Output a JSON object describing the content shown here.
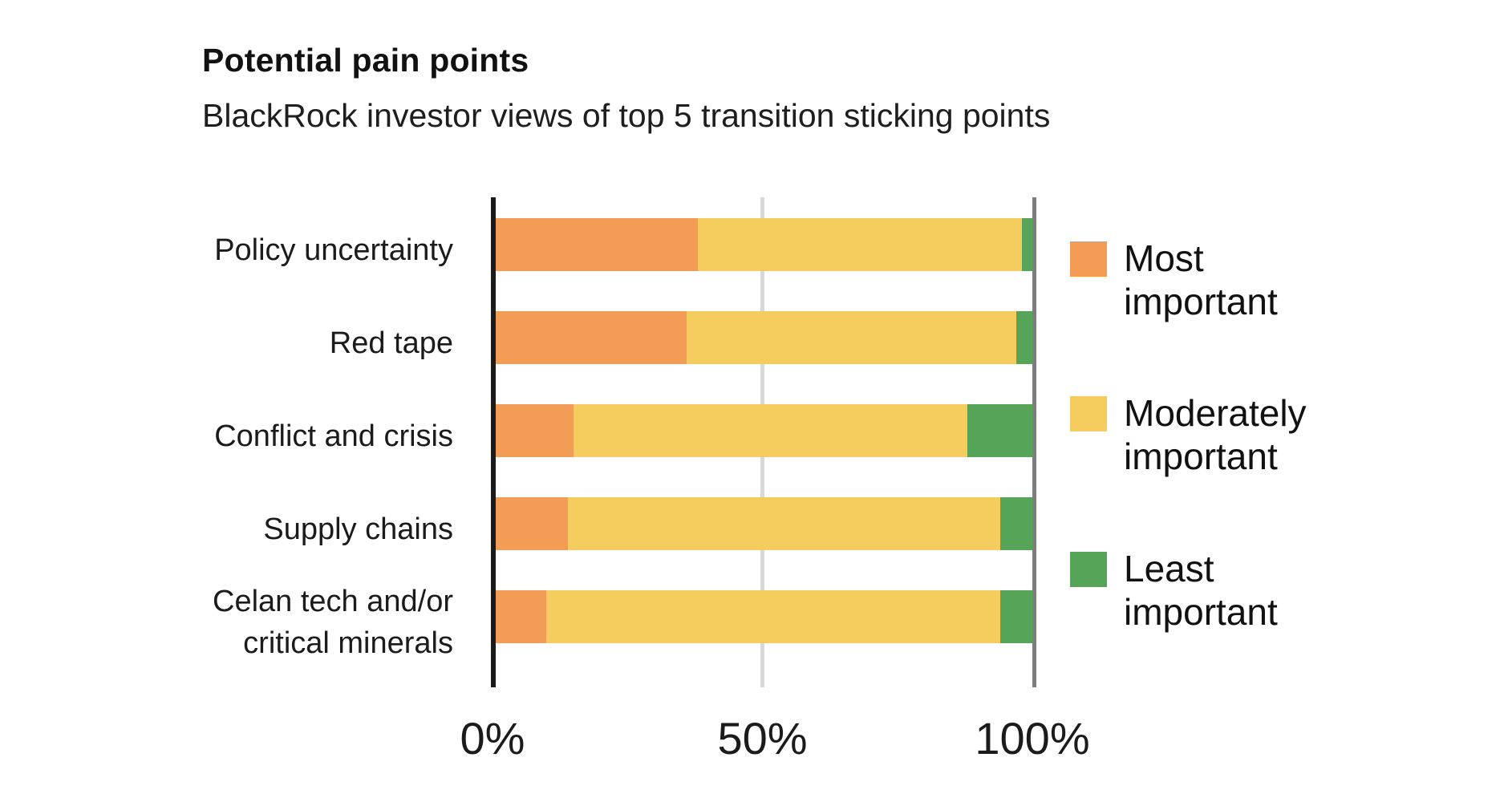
{
  "header": {
    "title": "Potential pain points",
    "subtitle": "BlackRock investor views of top 5 transition sticking points"
  },
  "chart_data": {
    "type": "bar",
    "orientation": "horizontal",
    "stacked": true,
    "unit": "percent",
    "title": "Potential pain points",
    "subtitle": "BlackRock investor views of top 5 transition sticking points",
    "categories": [
      "Policy uncertainty",
      "Red tape",
      "Conflict and crisis",
      "Supply chains",
      "Celan tech and/or critical minerals"
    ],
    "category_display_lines": [
      [
        "Policy uncertainty"
      ],
      [
        "Red tape"
      ],
      [
        "Conflict and crisis"
      ],
      [
        "Supply chains"
      ],
      [
        "Celan tech and/or",
        "critical minerals"
      ]
    ],
    "series": [
      {
        "name": "Most important",
        "color": "#F29C55",
        "values": [
          38,
          36,
          15,
          14,
          10
        ]
      },
      {
        "name": "Moderately important",
        "color": "#F5CD5F",
        "values": [
          60,
          61,
          73,
          80,
          84
        ]
      },
      {
        "name": "Least important",
        "color": "#55A458",
        "values": [
          2,
          3,
          12,
          6,
          6
        ]
      }
    ],
    "xlabel": "",
    "ylabel": "",
    "xlim": [
      0,
      100
    ],
    "x_ticks": [
      {
        "label": "0%",
        "value": 0
      },
      {
        "label": "50%",
        "value": 50
      },
      {
        "label": "100%",
        "value": 100
      }
    ],
    "grid": "vertical-lines-at-ticks",
    "legend_position": "right"
  },
  "legend": {
    "items": [
      {
        "lines": [
          "Most",
          "important"
        ]
      },
      {
        "lines": [
          "Moderately",
          "important"
        ]
      },
      {
        "lines": [
          "Least",
          "important"
        ]
      }
    ]
  },
  "colors": {
    "axis_line": "#1b1b1b",
    "gridline_50": "#d9d9d9",
    "gridline_100": "#7d7d7d",
    "text": "#1b1b1b",
    "background": "#ffffff"
  }
}
